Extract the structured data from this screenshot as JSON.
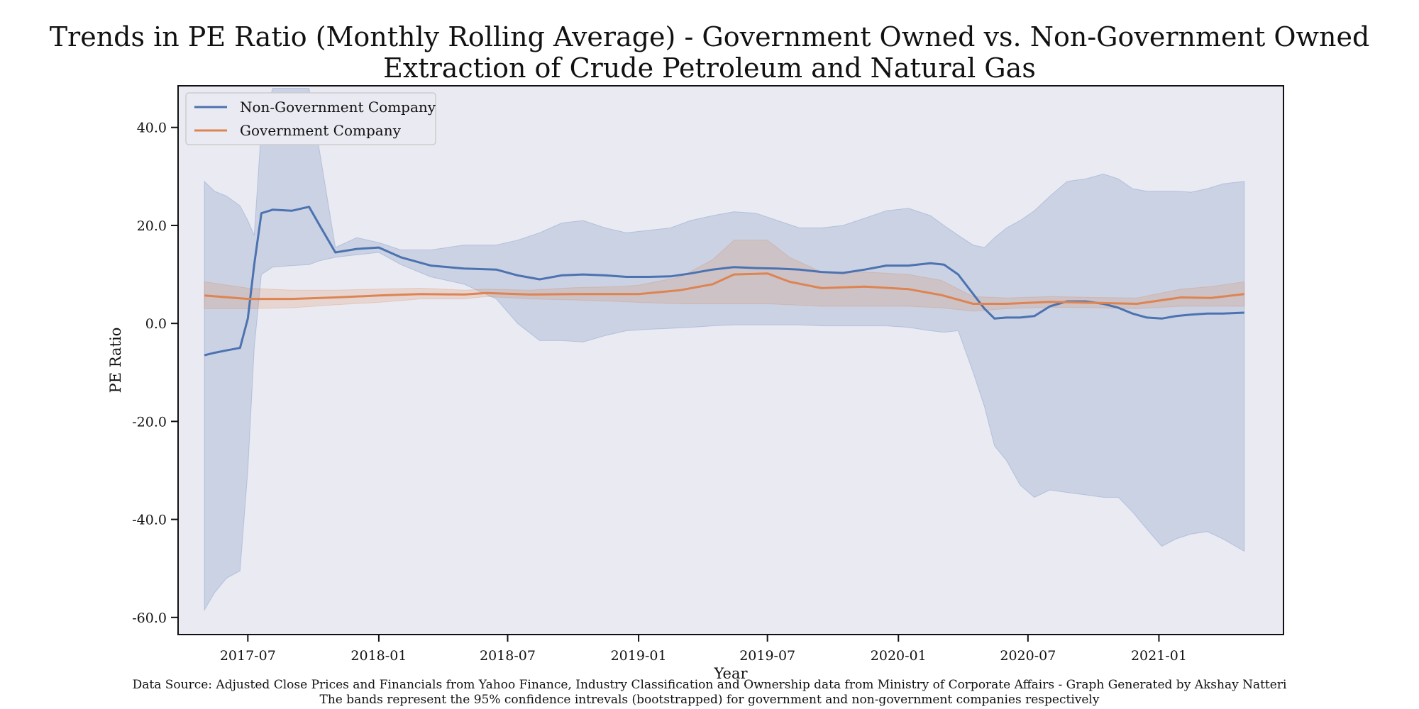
{
  "chart_data": {
    "type": "line",
    "title": "Trends in PE Ratio (Monthly Rolling Average) - Government Owned vs. Non-Government Owned",
    "subtitle": "Extraction of Crude Petroleum and Natural Gas",
    "xlabel": "Year",
    "ylabel": "PE Ratio",
    "xlim": [
      "2017-03-25",
      "2021-06-25"
    ],
    "ylim": [
      -63.5,
      48.5
    ],
    "x_ticks": [
      "2017-07",
      "2018-01",
      "2018-07",
      "2019-01",
      "2019-07",
      "2020-01",
      "2020-07",
      "2021-01"
    ],
    "y_ticks": [
      -60.0,
      -40.0,
      -20.0,
      0.0,
      20.0,
      40.0
    ],
    "y_tick_labels": [
      "-60.0",
      "-40.0",
      "-20.0",
      "0.0",
      "20.0",
      "40.0"
    ],
    "grid": false,
    "legend_position": "top-left",
    "background": "#eaeaf2",
    "footnotes": [
      "Data Source: Adjusted Close Prices and Financials from Yahoo Finance, Industry Classification and Ownership data from Ministry of Corporate Affairs  - Graph Generated by Akshay Natteri",
      "The bands represent the 95% confidence intrevals (bootstrapped) for government and non-government companies respectively"
    ],
    "series": [
      {
        "name": "Non-Government Company",
        "color": "#4c72b0",
        "band_note": "95% confidence interval",
        "points": [
          {
            "x": "2017-05-01",
            "y": -6.5,
            "lower": -58.5,
            "upper": 29.0
          },
          {
            "x": "2017-05-15",
            "y": -6.0,
            "lower": -55.0,
            "upper": 27.0
          },
          {
            "x": "2017-06-01",
            "y": -5.5,
            "lower": -52.0,
            "upper": 26.0
          },
          {
            "x": "2017-06-20",
            "y": -5.0,
            "lower": -50.5,
            "upper": 24.0
          },
          {
            "x": "2017-07-01",
            "y": 1.0,
            "lower": -30.0,
            "upper": 21.0
          },
          {
            "x": "2017-07-10",
            "y": 12.0,
            "lower": -5.0,
            "upper": 18.0
          },
          {
            "x": "2017-07-20",
            "y": 22.5,
            "lower": 10.0,
            "upper": 40.0
          },
          {
            "x": "2017-08-05",
            "y": 23.2,
            "lower": 11.5,
            "upper": 48.0
          },
          {
            "x": "2017-09-01",
            "y": 23.0,
            "lower": 11.8,
            "upper": 48.0
          },
          {
            "x": "2017-09-25",
            "y": 23.8,
            "lower": 12.0,
            "upper": 48.0
          },
          {
            "x": "2017-10-10",
            "y": 20.0,
            "lower": 12.8,
            "upper": 35.0
          },
          {
            "x": "2017-11-01",
            "y": 14.5,
            "lower": 13.5,
            "upper": 15.5
          },
          {
            "x": "2017-12-01",
            "y": 15.2,
            "lower": 14.0,
            "upper": 17.5
          },
          {
            "x": "2018-01-01",
            "y": 15.5,
            "lower": 14.5,
            "upper": 16.5
          },
          {
            "x": "2018-02-01",
            "y": 13.5,
            "lower": 12.0,
            "upper": 15.0
          },
          {
            "x": "2018-03-15",
            "y": 11.8,
            "lower": 9.5,
            "upper": 15.0
          },
          {
            "x": "2018-05-01",
            "y": 11.2,
            "lower": 8.0,
            "upper": 16.0
          },
          {
            "x": "2018-06-15",
            "y": 11.0,
            "lower": 5.0,
            "upper": 16.0
          },
          {
            "x": "2018-07-15",
            "y": 9.8,
            "lower": 0.0,
            "upper": 17.0
          },
          {
            "x": "2018-08-15",
            "y": 9.0,
            "lower": -3.5,
            "upper": 18.5
          },
          {
            "x": "2018-09-15",
            "y": 9.8,
            "lower": -3.5,
            "upper": 20.5
          },
          {
            "x": "2018-10-15",
            "y": 10.0,
            "lower": -3.8,
            "upper": 21.0
          },
          {
            "x": "2018-11-15",
            "y": 9.8,
            "lower": -2.5,
            "upper": 19.5
          },
          {
            "x": "2018-12-15",
            "y": 9.5,
            "lower": -1.5,
            "upper": 18.5
          },
          {
            "x": "2019-01-15",
            "y": 9.5,
            "lower": -1.2,
            "upper": 19.0
          },
          {
            "x": "2019-02-15",
            "y": 9.6,
            "lower": -1.0,
            "upper": 19.5
          },
          {
            "x": "2019-03-15",
            "y": 10.2,
            "lower": -0.8,
            "upper": 21.0
          },
          {
            "x": "2019-04-15",
            "y": 11.0,
            "lower": -0.5,
            "upper": 22.0
          },
          {
            "x": "2019-05-15",
            "y": 11.5,
            "lower": -0.3,
            "upper": 22.8
          },
          {
            "x": "2019-06-15",
            "y": 11.3,
            "lower": -0.3,
            "upper": 22.5
          },
          {
            "x": "2019-07-15",
            "y": 11.2,
            "lower": -0.3,
            "upper": 21.0
          },
          {
            "x": "2019-08-15",
            "y": 11.0,
            "lower": -0.3,
            "upper": 19.5
          },
          {
            "x": "2019-09-15",
            "y": 10.5,
            "lower": -0.5,
            "upper": 19.5
          },
          {
            "x": "2019-10-15",
            "y": 10.3,
            "lower": -0.5,
            "upper": 20.0
          },
          {
            "x": "2019-11-15",
            "y": 11.0,
            "lower": -0.5,
            "upper": 21.5
          },
          {
            "x": "2019-12-15",
            "y": 11.8,
            "lower": -0.5,
            "upper": 23.0
          },
          {
            "x": "2020-01-15",
            "y": 11.8,
            "lower": -0.8,
            "upper": 23.5
          },
          {
            "x": "2020-02-15",
            "y": 12.3,
            "lower": -1.5,
            "upper": 22.0
          },
          {
            "x": "2020-03-05",
            "y": 12.0,
            "lower": -1.8,
            "upper": 20.0
          },
          {
            "x": "2020-03-25",
            "y": 10.0,
            "lower": -1.5,
            "upper": 18.0
          },
          {
            "x": "2020-04-15",
            "y": 6.0,
            "lower": -10.0,
            "upper": 16.0
          },
          {
            "x": "2020-05-01",
            "y": 3.0,
            "lower": -17.0,
            "upper": 15.5
          },
          {
            "x": "2020-05-15",
            "y": 1.0,
            "lower": -25.0,
            "upper": 17.5
          },
          {
            "x": "2020-06-01",
            "y": 1.2,
            "lower": -28.0,
            "upper": 19.5
          },
          {
            "x": "2020-06-20",
            "y": 1.2,
            "lower": -33.0,
            "upper": 21.0
          },
          {
            "x": "2020-07-10",
            "y": 1.5,
            "lower": -35.5,
            "upper": 23.0
          },
          {
            "x": "2020-08-01",
            "y": 3.5,
            "lower": -34.0,
            "upper": 26.0
          },
          {
            "x": "2020-08-25",
            "y": 4.5,
            "lower": -34.5,
            "upper": 29.0
          },
          {
            "x": "2020-09-20",
            "y": 4.5,
            "lower": -35.0,
            "upper": 29.5
          },
          {
            "x": "2020-10-15",
            "y": 4.0,
            "lower": -35.5,
            "upper": 30.5
          },
          {
            "x": "2020-11-05",
            "y": 3.2,
            "lower": -35.5,
            "upper": 29.5
          },
          {
            "x": "2020-11-25",
            "y": 2.0,
            "lower": -38.5,
            "upper": 27.5
          },
          {
            "x": "2020-12-15",
            "y": 1.2,
            "lower": -42.0,
            "upper": 27.0
          },
          {
            "x": "2021-01-05",
            "y": 1.0,
            "lower": -45.5,
            "upper": 27.0
          },
          {
            "x": "2021-01-25",
            "y": 1.5,
            "lower": -44.0,
            "upper": 27.0
          },
          {
            "x": "2021-02-15",
            "y": 1.8,
            "lower": -43.0,
            "upper": 26.8
          },
          {
            "x": "2021-03-10",
            "y": 2.0,
            "lower": -42.5,
            "upper": 27.5
          },
          {
            "x": "2021-04-01",
            "y": 2.0,
            "lower": -44.0,
            "upper": 28.5
          },
          {
            "x": "2021-05-01",
            "y": 2.2,
            "lower": -46.5,
            "upper": 29.0
          }
        ]
      },
      {
        "name": "Government Company",
        "color": "#dd8452",
        "band_note": "95% confidence interval",
        "points": [
          {
            "x": "2017-05-01",
            "y": 5.7,
            "lower": 3.0,
            "upper": 8.5
          },
          {
            "x": "2017-07-01",
            "y": 5.0,
            "lower": 3.0,
            "upper": 7.2
          },
          {
            "x": "2017-09-01",
            "y": 5.0,
            "lower": 3.2,
            "upper": 6.8
          },
          {
            "x": "2017-11-01",
            "y": 5.3,
            "lower": 3.8,
            "upper": 6.8
          },
          {
            "x": "2018-01-01",
            "y": 5.7,
            "lower": 4.3,
            "upper": 7.0
          },
          {
            "x": "2018-03-01",
            "y": 6.0,
            "lower": 5.0,
            "upper": 7.2
          },
          {
            "x": "2018-05-01",
            "y": 5.9,
            "lower": 5.0,
            "upper": 6.8
          },
          {
            "x": "2018-06-01",
            "y": 6.2,
            "lower": 5.5,
            "upper": 7.0
          },
          {
            "x": "2018-08-01",
            "y": 5.9,
            "lower": 5.0,
            "upper": 6.8
          },
          {
            "x": "2018-10-01",
            "y": 6.0,
            "lower": 4.8,
            "upper": 7.3
          },
          {
            "x": "2018-12-01",
            "y": 6.0,
            "lower": 4.5,
            "upper": 7.5
          },
          {
            "x": "2019-01-01",
            "y": 6.0,
            "lower": 4.3,
            "upper": 7.8
          },
          {
            "x": "2019-03-01",
            "y": 6.8,
            "lower": 4.0,
            "upper": 9.5
          },
          {
            "x": "2019-04-15",
            "y": 8.0,
            "lower": 4.0,
            "upper": 13.0
          },
          {
            "x": "2019-05-15",
            "y": 10.0,
            "lower": 4.0,
            "upper": 17.0
          },
          {
            "x": "2019-07-01",
            "y": 10.2,
            "lower": 4.0,
            "upper": 17.0
          },
          {
            "x": "2019-08-01",
            "y": 8.5,
            "lower": 3.8,
            "upper": 13.5
          },
          {
            "x": "2019-09-15",
            "y": 7.2,
            "lower": 3.5,
            "upper": 10.5
          },
          {
            "x": "2019-11-15",
            "y": 7.5,
            "lower": 3.5,
            "upper": 10.5
          },
          {
            "x": "2020-01-15",
            "y": 7.0,
            "lower": 3.5,
            "upper": 10.0
          },
          {
            "x": "2020-03-01",
            "y": 5.8,
            "lower": 3.2,
            "upper": 8.8
          },
          {
            "x": "2020-04-15",
            "y": 4.0,
            "lower": 2.5,
            "upper": 5.5
          },
          {
            "x": "2020-06-01",
            "y": 4.0,
            "lower": 3.0,
            "upper": 5.2
          },
          {
            "x": "2020-08-01",
            "y": 4.4,
            "lower": 3.3,
            "upper": 5.5
          },
          {
            "x": "2020-10-01",
            "y": 4.2,
            "lower": 3.2,
            "upper": 5.3
          },
          {
            "x": "2020-12-01",
            "y": 4.0,
            "lower": 3.0,
            "upper": 5.2
          },
          {
            "x": "2021-02-01",
            "y": 5.3,
            "lower": 3.5,
            "upper": 7.0
          },
          {
            "x": "2021-03-15",
            "y": 5.2,
            "lower": 3.5,
            "upper": 7.5
          },
          {
            "x": "2021-05-01",
            "y": 6.0,
            "lower": 3.5,
            "upper": 8.5
          }
        ]
      }
    ]
  }
}
